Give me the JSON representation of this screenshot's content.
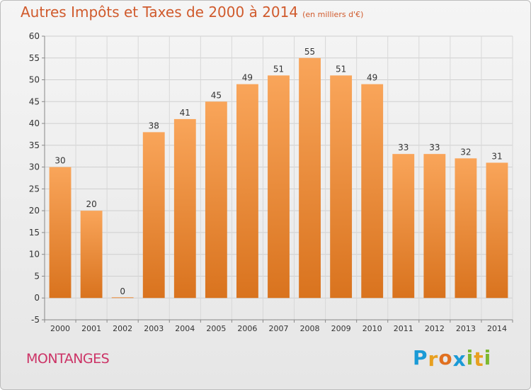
{
  "title": "Autres Impôts et Taxes de 2000 à 2014",
  "subtitle": "(en milliers d'€)",
  "commune": "MONTANGES",
  "logo": {
    "letters": [
      "P",
      "r",
      "o",
      "x",
      "i",
      "t",
      "i"
    ],
    "colors": [
      "#1a9ad6",
      "#e8a020",
      "#e07020",
      "#1a9ad6",
      "#7cb82f",
      "#e8a020",
      "#7cb82f"
    ]
  },
  "chart_data": {
    "type": "bar",
    "title": "Autres Impôts et Taxes de 2000 à 2014",
    "subtitle": "(en milliers d'€)",
    "categories": [
      "2000",
      "2001",
      "2002",
      "2003",
      "2004",
      "2005",
      "2006",
      "2007",
      "2008",
      "2009",
      "2010",
      "2011",
      "2012",
      "2013",
      "2014"
    ],
    "values": [
      30,
      20,
      0,
      38,
      41,
      45,
      49,
      51,
      55,
      51,
      49,
      33,
      33,
      32,
      31
    ],
    "ylim": [
      -5,
      60
    ],
    "yticks": [
      -5,
      0,
      5,
      10,
      15,
      20,
      25,
      30,
      35,
      40,
      45,
      50,
      55,
      60
    ],
    "grid": true,
    "bar_color": "#f08a30",
    "xlabel": "",
    "ylabel": ""
  }
}
